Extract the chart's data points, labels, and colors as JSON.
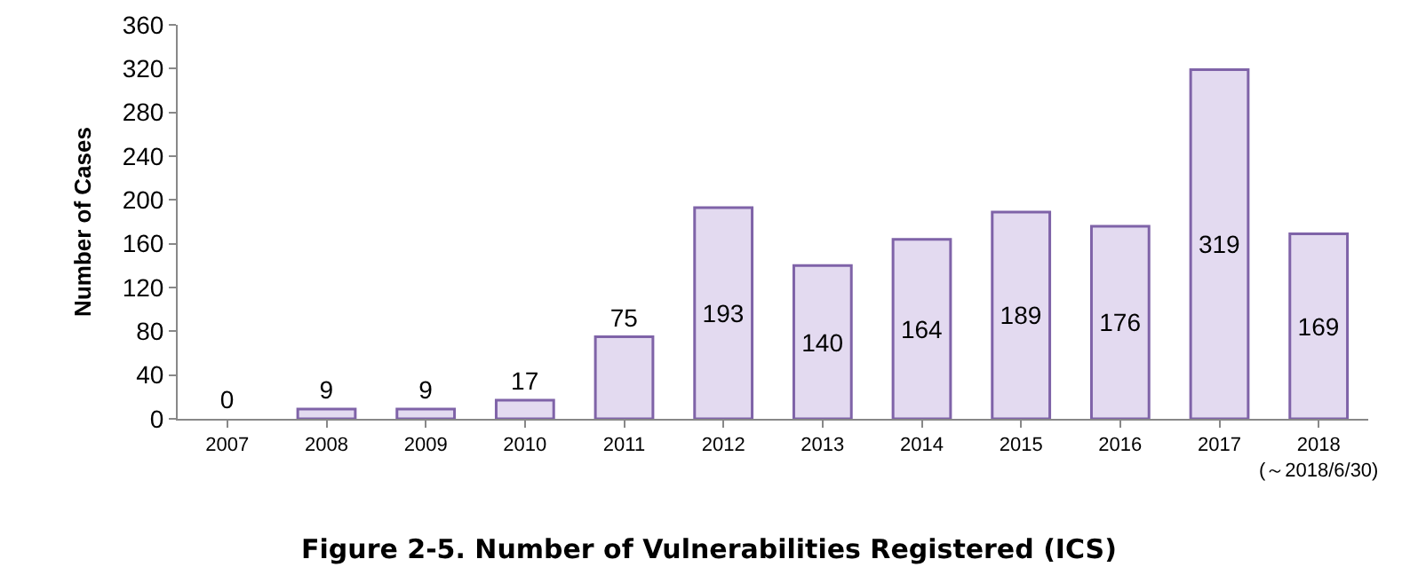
{
  "chart_data": {
    "type": "bar",
    "title": "Figure 2-5. Number of Vulnerabilities Registered (ICS)",
    "ylabel": "Number of Cases",
    "categories": [
      "2007",
      "2008",
      "2009",
      "2010",
      "2011",
      "2012",
      "2013",
      "2014",
      "2015",
      "2016",
      "2017",
      "2018\n(～2018/6/30)"
    ],
    "values": [
      0,
      9,
      9,
      17,
      75,
      193,
      140,
      164,
      189,
      176,
      319,
      169
    ],
    "color": "#e3daf0",
    "ylim": [
      0,
      360
    ],
    "yticks": [
      0,
      40,
      80,
      120,
      160,
      200,
      240,
      280,
      320,
      360
    ],
    "grid": false,
    "data_labels": true
  }
}
